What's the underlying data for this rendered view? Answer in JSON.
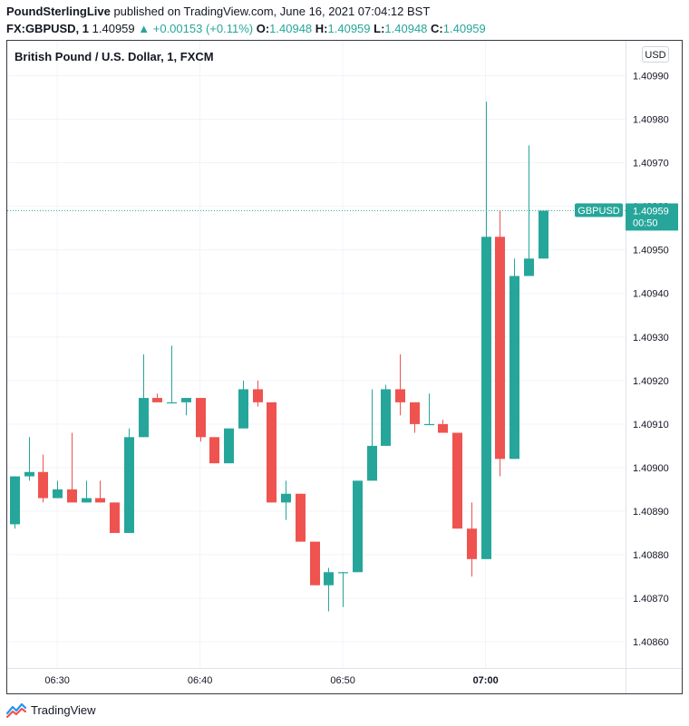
{
  "header": {
    "publisher": "PoundSterlingLive",
    "published_text": " published on TradingView.com, June 16, 2021 07:04:12 BST",
    "symbol": "FX:GBPUSD, 1",
    "last": "1.40959",
    "change": "▲ +0.00153 (+0.11%)",
    "o_label": "O:",
    "o_value": "1.40948",
    "h_label": "H:",
    "h_value": "1.40959",
    "l_label": "L:",
    "l_value": "1.40948",
    "c_label": "C:",
    "c_value": "1.40959"
  },
  "chart_title": "British Pound / U.S. Dollar, 1, FXCM",
  "currency": "USD",
  "footer": {
    "brand": "TradingView",
    "logo_icon": "tradingview-logo-icon"
  },
  "colors": {
    "up": "#26a69a",
    "down": "#ef5350",
    "grid": "#f0f3fa",
    "text": "#131722",
    "price_label_bg": "#26a69a"
  },
  "chart_data": {
    "type": "candlestick",
    "title": "British Pound / U.S. Dollar, 1, FXCM",
    "symbol": "GBPUSD",
    "ylim": [
      1.40854,
      1.40998
    ],
    "y_ticks": [
      "1.40860",
      "1.40870",
      "1.40880",
      "1.40890",
      "1.40900",
      "1.40910",
      "1.40920",
      "1.40930",
      "1.40940",
      "1.40950",
      "1.40960",
      "1.40970",
      "1.40980",
      "1.40990"
    ],
    "x_ticks": [
      {
        "label": "06:30",
        "minute": 3,
        "bold": false
      },
      {
        "label": "06:40",
        "minute": 13,
        "bold": false
      },
      {
        "label": "06:50",
        "minute": 23,
        "bold": false
      },
      {
        "label": "07:00",
        "minute": 33,
        "bold": true
      }
    ],
    "x_range_minutes": [
      -0.5,
      42.8
    ],
    "candles": [
      {
        "o": 1.40887,
        "h": 1.40898,
        "l": 1.40886,
        "c": 1.40898
      },
      {
        "o": 1.40898,
        "h": 1.40907,
        "l": 1.40897,
        "c": 1.40899
      },
      {
        "o": 1.40899,
        "h": 1.40903,
        "l": 1.40892,
        "c": 1.40893
      },
      {
        "o": 1.40893,
        "h": 1.40897,
        "l": 1.40893,
        "c": 1.40895
      },
      {
        "o": 1.40895,
        "h": 1.40908,
        "l": 1.40892,
        "c": 1.40892
      },
      {
        "o": 1.40892,
        "h": 1.40897,
        "l": 1.40892,
        "c": 1.40893
      },
      {
        "o": 1.40893,
        "h": 1.40897,
        "l": 1.40892,
        "c": 1.40892
      },
      {
        "o": 1.40892,
        "h": 1.40892,
        "l": 1.40885,
        "c": 1.40885
      },
      {
        "o": 1.40885,
        "h": 1.40909,
        "l": 1.40885,
        "c": 1.40907
      },
      {
        "o": 1.40907,
        "h": 1.40926,
        "l": 1.40907,
        "c": 1.40916
      },
      {
        "o": 1.40916,
        "h": 1.40917,
        "l": 1.40915,
        "c": 1.40915
      },
      {
        "o": 1.40915,
        "h": 1.40928,
        "l": 1.40915,
        "c": 1.40915
      },
      {
        "o": 1.40915,
        "h": 1.40916,
        "l": 1.40912,
        "c": 1.40916
      },
      {
        "o": 1.40916,
        "h": 1.40916,
        "l": 1.40906,
        "c": 1.40907
      },
      {
        "o": 1.40907,
        "h": 1.40907,
        "l": 1.40901,
        "c": 1.40901
      },
      {
        "o": 1.40901,
        "h": 1.40909,
        "l": 1.40901,
        "c": 1.40909
      },
      {
        "o": 1.40909,
        "h": 1.4092,
        "l": 1.40909,
        "c": 1.40918
      },
      {
        "o": 1.40918,
        "h": 1.4092,
        "l": 1.40914,
        "c": 1.40915
      },
      {
        "o": 1.40915,
        "h": 1.40915,
        "l": 1.40892,
        "c": 1.40892
      },
      {
        "o": 1.40892,
        "h": 1.40897,
        "l": 1.40888,
        "c": 1.40894
      },
      {
        "o": 1.40894,
        "h": 1.40894,
        "l": 1.40883,
        "c": 1.40883
      },
      {
        "o": 1.40883,
        "h": 1.40883,
        "l": 1.40873,
        "c": 1.40873
      },
      {
        "o": 1.40873,
        "h": 1.40877,
        "l": 1.40867,
        "c": 1.40876
      },
      {
        "o": 1.40876,
        "h": 1.40876,
        "l": 1.40868,
        "c": 1.40876
      },
      {
        "o": 1.40876,
        "h": 1.40897,
        "l": 1.40876,
        "c": 1.40897
      },
      {
        "o": 1.40897,
        "h": 1.40918,
        "l": 1.40897,
        "c": 1.40905
      },
      {
        "o": 1.40905,
        "h": 1.40919,
        "l": 1.40905,
        "c": 1.40918
      },
      {
        "o": 1.40918,
        "h": 1.40926,
        "l": 1.40912,
        "c": 1.40915
      },
      {
        "o": 1.40915,
        "h": 1.40915,
        "l": 1.40908,
        "c": 1.4091
      },
      {
        "o": 1.4091,
        "h": 1.40917,
        "l": 1.4091,
        "c": 1.4091
      },
      {
        "o": 1.4091,
        "h": 1.40911,
        "l": 1.40908,
        "c": 1.40908
      },
      {
        "o": 1.40908,
        "h": 1.40908,
        "l": 1.40886,
        "c": 1.40886
      },
      {
        "o": 1.40886,
        "h": 1.40892,
        "l": 1.40875,
        "c": 1.40879
      },
      {
        "o": 1.40879,
        "h": 1.40984,
        "l": 1.40879,
        "c": 1.40953
      },
      {
        "o": 1.40953,
        "h": 1.40959,
        "l": 1.40898,
        "c": 1.40902
      },
      {
        "o": 1.40902,
        "h": 1.40948,
        "l": 1.40902,
        "c": 1.40944
      },
      {
        "o": 1.40944,
        "h": 1.40974,
        "l": 1.40944,
        "c": 1.40948
      },
      {
        "o": 1.40948,
        "h": 1.40959,
        "l": 1.40948,
        "c": 1.40959
      }
    ],
    "current_price": {
      "symbol": "GBPUSD",
      "value": 1.40959,
      "price_text": "1.40959",
      "countdown": "00:50"
    },
    "grid": true
  }
}
